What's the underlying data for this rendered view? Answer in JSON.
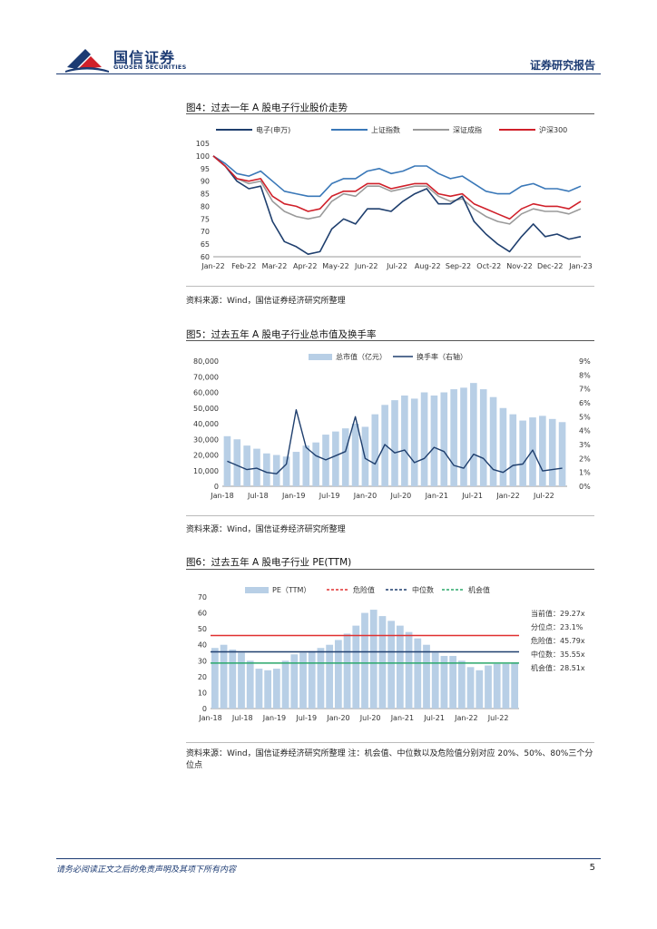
{
  "header": {
    "company_cn": "国信证券",
    "company_en": "GUOSEN SECURITIES",
    "report_type": "证券研究报告"
  },
  "figure4": {
    "title": "图4：过去一年 A 股电子行业股价走势",
    "source": "资料来源：Wind，国信证券经济研究所整理"
  },
  "figure5": {
    "title": "图5：过去五年 A 股电子行业总市值及换手率",
    "source": "资料来源：Wind，国信证券经济研究所整理"
  },
  "figure6": {
    "title": "图6：过去五年 A 股电子行业 PE(TTM)",
    "source": "资料来源：Wind，国信证券经济研究所整理      注：机会值、中位数以及危险值分别对应 20%、50%、80%三个分位点"
  },
  "footer": {
    "disclaimer": "请务必阅读正文之后的免责声明及其项下所有内容",
    "page_number": "5"
  },
  "colors": {
    "navy": "#1c3b73",
    "electronics": "#1f3f6e",
    "shanghai": "#3a78b8",
    "shenzhen": "#9a9a9a",
    "hs300": "#d0202a",
    "bars": "#b8cfe6",
    "danger": "#e03030",
    "median": "#1f3f6e",
    "opportunity": "#2aa86a"
  },
  "chart_data": [
    {
      "type": "line",
      "title": "过去一年 A 股电子行业股价走势",
      "x_ticks": [
        "Jan-22",
        "Feb-22",
        "Mar-22",
        "Apr-22",
        "May-22",
        "Jun-22",
        "Jul-22",
        "Aug-22",
        "Sep-22",
        "Oct-22",
        "Nov-22",
        "Dec-22",
        "Jan-23"
      ],
      "ylim": [
        60,
        105
      ],
      "y_ticks": [
        "60",
        "65",
        "70",
        "75",
        "80",
        "85",
        "90",
        "95",
        "100",
        "105"
      ],
      "series": [
        {
          "name": "电子(申万)",
          "values": [
            100,
            96,
            90,
            87,
            88,
            74,
            66,
            64,
            61,
            62,
            71,
            75,
            73,
            79,
            79,
            78,
            82,
            85,
            87,
            81,
            81,
            84,
            74,
            69,
            65,
            62,
            68,
            73,
            68,
            69,
            67,
            68
          ]
        },
        {
          "name": "上证指数",
          "values": [
            100,
            97,
            93,
            92,
            94,
            90,
            86,
            85,
            84,
            84,
            89,
            91,
            91,
            94,
            95,
            93,
            94,
            96,
            96,
            93,
            91,
            92,
            89,
            86,
            85,
            85,
            88,
            89,
            87,
            87,
            86,
            88
          ]
        },
        {
          "name": "深证成指",
          "values": [
            100,
            96,
            91,
            89,
            90,
            82,
            78,
            76,
            75,
            76,
            82,
            85,
            84,
            88,
            88,
            86,
            87,
            88,
            88,
            84,
            82,
            83,
            79,
            76,
            74,
            73,
            77,
            79,
            78,
            78,
            77,
            79
          ]
        },
        {
          "name": "沪深300",
          "values": [
            100,
            96,
            91,
            90,
            91,
            84,
            81,
            80,
            78,
            79,
            84,
            86,
            86,
            89,
            89,
            87,
            88,
            89,
            89,
            85,
            84,
            85,
            81,
            79,
            77,
            75,
            79,
            81,
            80,
            80,
            79,
            82
          ]
        }
      ]
    },
    {
      "type": "bar",
      "title": "过去五年 A 股电子行业总市值及换手率",
      "x_ticks": [
        "Jan-18",
        "Jul-18",
        "Jan-19",
        "Jul-19",
        "Jan-20",
        "Jul-20",
        "Jan-21",
        "Jul-21",
        "Jan-22",
        "Jul-22"
      ],
      "ylim": [
        0,
        80000
      ],
      "y2lim": [
        0,
        9
      ],
      "y_ticks": [
        "0",
        "10,000",
        "20,000",
        "30,000",
        "40,000",
        "50,000",
        "60,000",
        "70,000",
        "80,000"
      ],
      "y2_ticks": [
        "0%",
        "1%",
        "2%",
        "3%",
        "4%",
        "5%",
        "6%",
        "7%",
        "8%",
        "9%"
      ],
      "series": [
        {
          "name": "总市值（亿元）",
          "axis": "left",
          "values": [
            32000,
            30000,
            26000,
            24000,
            21000,
            20000,
            19000,
            22000,
            26000,
            28000,
            33000,
            35000,
            37000,
            40000,
            38000,
            46000,
            52000,
            55000,
            58000,
            56000,
            60000,
            58000,
            60000,
            62000,
            63000,
            66000,
            62000,
            57000,
            50000,
            46000,
            42000,
            44000,
            45000,
            43000,
            41000
          ]
        },
        {
          "name": "换手率（右轴）",
          "axis": "right",
          "values": [
            1.8,
            1.5,
            1.2,
            1.3,
            1.0,
            0.9,
            1.6,
            5.5,
            2.8,
            2.2,
            1.9,
            2.2,
            2.5,
            5.0,
            2.0,
            1.6,
            3.0,
            2.4,
            2.6,
            1.7,
            2.0,
            2.8,
            2.5,
            1.5,
            1.3,
            2.3,
            2.0,
            1.2,
            1.0,
            1.5,
            1.6,
            2.6,
            1.1,
            1.2,
            1.3
          ]
        }
      ]
    },
    {
      "type": "bar",
      "title": "过去五年 A 股电子行业 PE(TTM)",
      "x_ticks": [
        "Jan-18",
        "Jul-18",
        "Jan-19",
        "Jul-19",
        "Jan-20",
        "Jul-20",
        "Jan-21",
        "Jul-21",
        "Jan-22",
        "Jul-22"
      ],
      "ylim": [
        0,
        70
      ],
      "y_ticks": [
        "0",
        "10",
        "20",
        "30",
        "40",
        "50",
        "60",
        "70"
      ],
      "series": [
        {
          "name": "PE（TTM）",
          "values": [
            38,
            40,
            37,
            35,
            30,
            25,
            24,
            25,
            30,
            34,
            35,
            36,
            38,
            40,
            43,
            47,
            52,
            60,
            62,
            58,
            55,
            52,
            48,
            44,
            40,
            35,
            33,
            33,
            30,
            26,
            24,
            27,
            28,
            28,
            29
          ]
        },
        {
          "name": "危险值",
          "value": 45.79
        },
        {
          "name": "中位数",
          "value": 35.55
        },
        {
          "name": "机会值",
          "value": 28.51
        }
      ],
      "annotations": [
        "当前值：29.27x",
        "分位点：23.1%",
        "危险值：45.79x",
        "中位数：35.55x",
        "机会值：28.51x"
      ]
    }
  ]
}
